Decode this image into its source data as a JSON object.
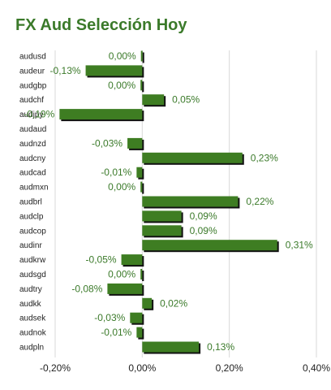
{
  "title": "FX Aud Selección Hoy",
  "colors": {
    "bar": "#3e7d22",
    "shadow": "#111111",
    "grid": "#d9d9d9",
    "title": "#3b7a2a"
  },
  "chart_data": {
    "type": "bar",
    "orientation": "horizontal",
    "title": "FX Aud Selección Hoy",
    "xlabel": "",
    "ylabel": "",
    "xlim": [
      -0.2,
      0.4
    ],
    "grid": true,
    "x_ticks": [
      -0.2,
      0.0,
      0.2,
      0.4
    ],
    "x_tick_labels": [
      "-0,20%",
      "0,00%",
      "0,20%",
      "0,40%"
    ],
    "categories": [
      "audusd",
      "audeur",
      "audgbp",
      "audchf",
      "audjpy",
      "audaud",
      "audnzd",
      "audcny",
      "audcad",
      "audmxn",
      "audbrl",
      "audclp",
      "audcop",
      "audinr",
      "audkrw",
      "audsgd",
      "audtry",
      "audkk",
      "audsek",
      "audnok",
      "audpln"
    ],
    "values": [
      -0.003,
      -0.13,
      -0.004,
      0.05,
      -0.19,
      0.0,
      -0.034,
      0.23,
      -0.013,
      -0.004,
      0.22,
      0.09,
      0.09,
      0.31,
      -0.048,
      -0.004,
      -0.08,
      0.022,
      -0.028,
      -0.013,
      0.13
    ],
    "value_labels": [
      "0,00%",
      "-0,13%",
      "0,00%",
      "0,05%",
      "-0,19%",
      "",
      "-0,03%",
      "0,23%",
      "-0,01%",
      "0,00%",
      "0,22%",
      "0,09%",
      "0,09%",
      "0,31%",
      "-0,05%",
      "0,00%",
      "-0,08%",
      "0,02%",
      "-0,03%",
      "-0,01%",
      "0,13%"
    ]
  }
}
